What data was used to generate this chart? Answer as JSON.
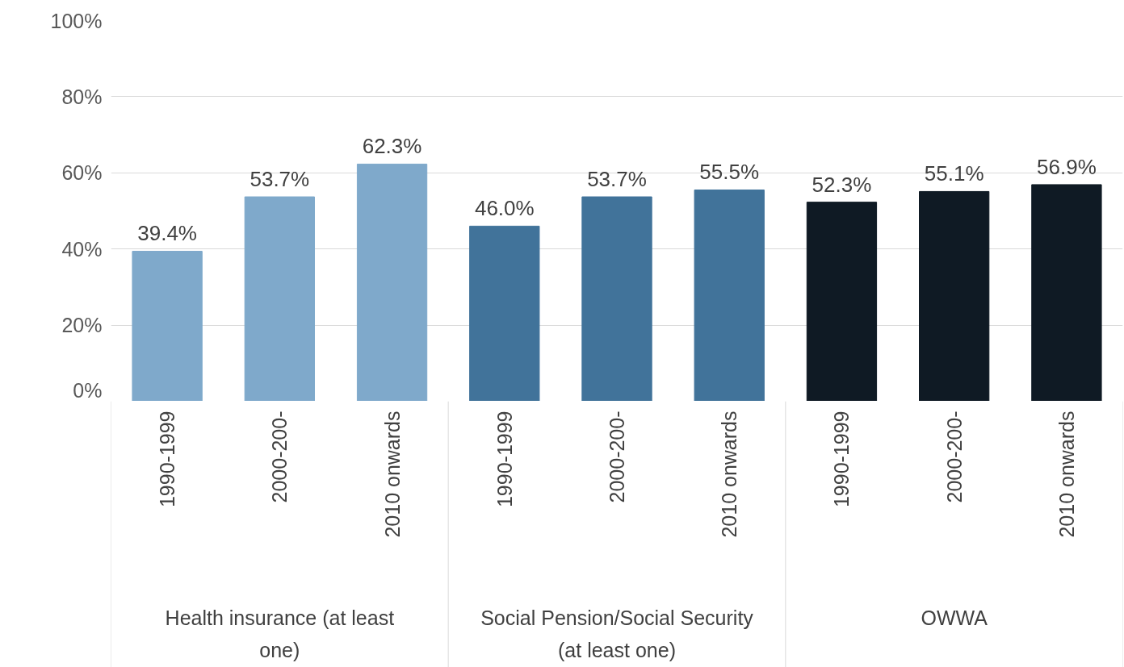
{
  "chart_data": {
    "type": "bar",
    "categories": [
      "1990-1999",
      "2000-200-",
      "2010 onwards",
      "1990-1999",
      "2000-200-",
      "2010 onwards",
      "1990-1999",
      "2000-200-",
      "2010 onwards"
    ],
    "values": [
      39.4,
      53.7,
      62.3,
      46.0,
      53.7,
      55.5,
      52.3,
      55.1,
      56.9
    ],
    "colors": [
      "#7fa9cb",
      "#7fa9cb",
      "#7fa9cb",
      "#41739a",
      "#41739a",
      "#41739a",
      "#0f1a24",
      "#0f1a24",
      "#0f1a24"
    ],
    "value_labels": [
      "39.4%",
      "53.7%",
      "62.3%",
      "46.0%",
      "53.7%",
      "55.5%",
      "52.3%",
      "55.1%",
      "56.9%"
    ],
    "annotations": [
      "Health insurance (at least one)",
      "Social Pension/Social Security (at least one)",
      "OWWA"
    ],
    "ylim": [
      0,
      100
    ],
    "yticks": [
      {
        "value": 0,
        "label": "0%"
      },
      {
        "value": 20,
        "label": "20%"
      },
      {
        "value": 40,
        "label": "40%"
      },
      {
        "value": 60,
        "label": "60%"
      },
      {
        "value": 80,
        "label": "80%"
      },
      {
        "value": 100,
        "label": "100%"
      }
    ],
    "grid": "y"
  }
}
